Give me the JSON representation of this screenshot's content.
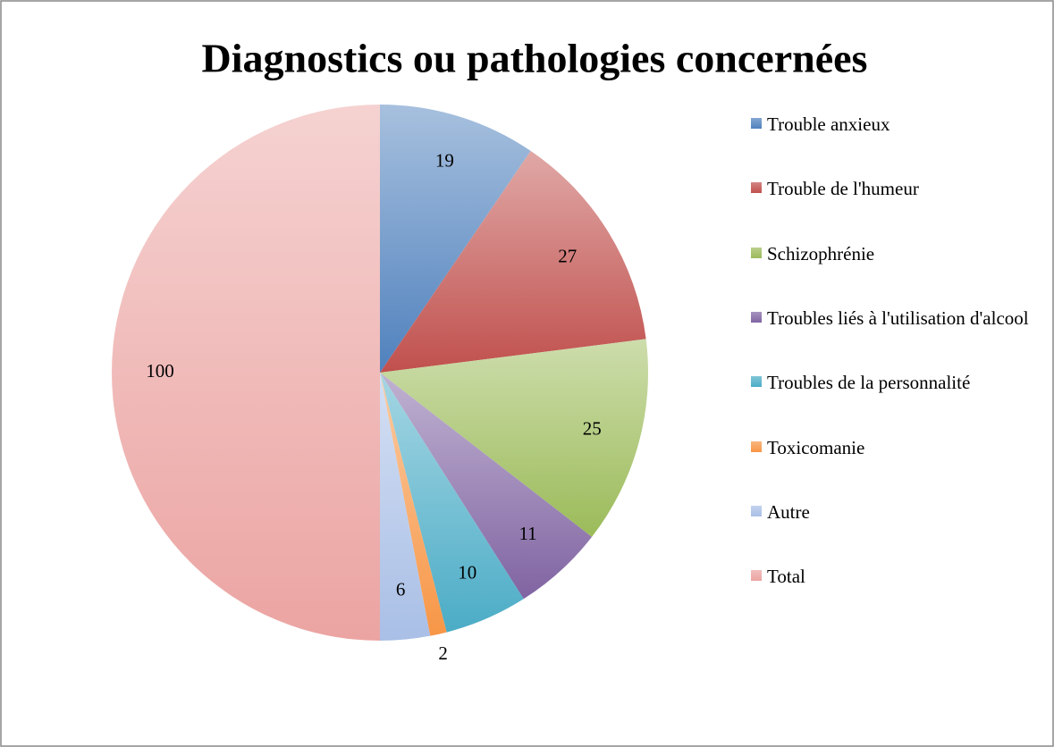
{
  "chart_data": {
    "type": "pie",
    "title": "Diagnostics ou pathologies concernées",
    "categories": [
      "Trouble anxieux",
      "Trouble de l'humeur",
      "Schizophrénie",
      "Troubles liés à l'utilisation d'alcool",
      "Troubles de la personnalité",
      "Toxicomanie",
      "Autre",
      "Total"
    ],
    "values": [
      19,
      27,
      25,
      11,
      10,
      2,
      6,
      100
    ],
    "colors": [
      "#4f81bd",
      "#c0504d",
      "#9bbb59",
      "#8064a2",
      "#4bacc6",
      "#f79646",
      "#a9bfe6",
      "#eba4a2"
    ],
    "legend": "right"
  }
}
